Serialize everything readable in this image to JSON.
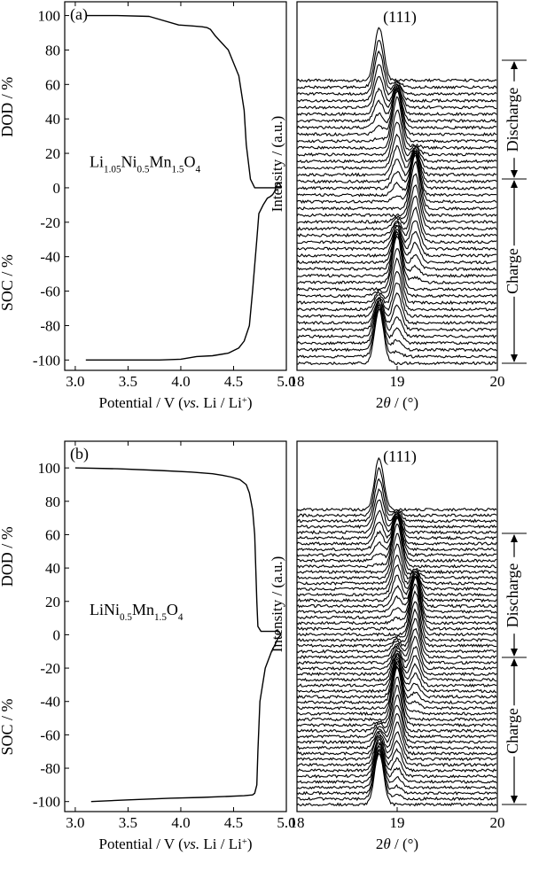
{
  "chart_data": [
    {
      "type": "line",
      "panel_label": "(a)",
      "annotation": {
        "parts": [
          {
            "t": "Li",
            "sub": false
          },
          {
            "t": "1.05",
            "sub": true
          },
          {
            "t": "Ni",
            "sub": false
          },
          {
            "t": "0.5",
            "sub": true
          },
          {
            "t": "Mn",
            "sub": false
          },
          {
            "t": "1.5",
            "sub": true
          },
          {
            "t": "O",
            "sub": false
          },
          {
            "t": "4",
            "sub": true
          }
        ]
      },
      "xlabel_parts": [
        {
          "t": "Potential / V (",
          "style": "normal"
        },
        {
          "t": "vs.",
          "style": "italic"
        },
        {
          "t": " Li / Li",
          "style": "normal"
        },
        {
          "t": "+",
          "style": "sup"
        },
        {
          "t": ")",
          "style": "normal"
        }
      ],
      "ylabel_top": "DOD / %",
      "ylabel_bottom": "SOC / %",
      "xlim": [
        2.9,
        5.0
      ],
      "ylim": [
        -106,
        108
      ],
      "xticks": [
        "3.0",
        "3.5",
        "4.0",
        "4.5",
        "5.0"
      ],
      "yticks": [
        "100",
        "80",
        "60",
        "40",
        "20",
        "0",
        "-20",
        "-40",
        "-60",
        "-80",
        "-100"
      ],
      "series": [
        {
          "x": [
            3.1,
            3.5,
            3.8,
            4.0,
            4.15,
            4.3,
            4.45,
            4.55,
            4.6,
            4.65,
            4.68,
            4.72,
            4.74,
            4.78,
            4.8,
            4.82,
            4.85,
            4.87,
            4.88,
            4.89,
            4.9,
            4.92,
            4.94,
            4.95,
            4.91,
            4.87,
            4.85,
            4.7,
            4.66,
            4.62,
            4.6,
            4.55,
            4.45,
            4.33,
            4.28,
            4.25,
            4.2,
            4.1,
            3.98,
            3.7,
            3.4,
            3.1
          ],
          "y": [
            -100,
            -100,
            -100,
            -99.5,
            -98,
            -97.5,
            -96,
            -93,
            -89,
            -80,
            -60,
            -30,
            -15,
            -10,
            -8,
            -6,
            -5,
            -4,
            -3,
            -2,
            0,
            3,
            2,
            0,
            0,
            0,
            0,
            0,
            5,
            25,
            45,
            65,
            80,
            88,
            92,
            93,
            93.5,
            94,
            94.5,
            99.5,
            100,
            100
          ]
        }
      ]
    },
    {
      "type": "line",
      "subtype": "stacked_xrd",
      "peak_label": "(111)",
      "ylabel": "Intensity / (a.u.)",
      "xlabel_parts": [
        {
          "t": "2",
          "style": "normal"
        },
        {
          "t": "θ",
          "style": "italic"
        },
        {
          "t": " / (°)",
          "style": "normal"
        }
      ],
      "xlim": [
        18,
        20
      ],
      "xticks": [
        "18",
        "19",
        "20"
      ],
      "annotations": [
        "Charge",
        "Discharge"
      ],
      "series_summary": {
        "charge_count": 23,
        "discharge_count": 20,
        "charge_peak_2theta": [
          18.82,
          19.02
        ],
        "discharge_peak_2theta": [
          19.18,
          18.8
        ],
        "phases": [
          18.82,
          19.0,
          19.18
        ]
      }
    },
    {
      "type": "line",
      "panel_label": "(b)",
      "annotation": {
        "parts": [
          {
            "t": "LiNi",
            "sub": false
          },
          {
            "t": "0.5",
            "sub": true
          },
          {
            "t": "Mn",
            "sub": false
          },
          {
            "t": "1.5",
            "sub": true
          },
          {
            "t": "O",
            "sub": false
          },
          {
            "t": "4",
            "sub": true
          }
        ]
      },
      "xlabel_parts": [
        {
          "t": "Potential / V (",
          "style": "normal"
        },
        {
          "t": "vs.",
          "style": "italic"
        },
        {
          "t": " Li / Li",
          "style": "normal"
        },
        {
          "t": "+",
          "style": "sup"
        },
        {
          "t": ")",
          "style": "normal"
        }
      ],
      "ylabel_top": "DOD / %",
      "ylabel_bottom": "SOC / %",
      "xlim": [
        2.9,
        5.0
      ],
      "ylim": [
        -106,
        116
      ],
      "xticks": [
        "3.0",
        "3.5",
        "4.0",
        "4.5",
        "5.0"
      ],
      "yticks": [
        "100",
        "80",
        "60",
        "40",
        "20",
        "0",
        "-20",
        "-40",
        "-60",
        "-80",
        "-100"
      ],
      "series": [
        {
          "x": [
            3.15,
            3.5,
            3.9,
            4.2,
            4.4,
            4.6,
            4.68,
            4.7,
            4.72,
            4.73,
            4.75,
            4.8,
            4.86,
            4.9,
            4.92,
            4.95,
            4.93,
            4.88,
            4.82,
            4.76,
            4.73,
            4.72,
            4.71,
            4.7,
            4.68,
            4.65,
            4.62,
            4.56,
            4.48,
            4.4,
            4.3,
            4.1,
            3.8,
            3.4,
            3.0
          ],
          "y": [
            -100,
            -99,
            -98,
            -97.5,
            -97,
            -96.5,
            -96,
            -95,
            -90,
            -70,
            -40,
            -20,
            -10,
            -5,
            -2,
            0,
            2,
            2,
            2,
            2,
            5,
            20,
            40,
            60,
            75,
            85,
            90,
            93,
            94.5,
            95.5,
            96.5,
            97.5,
            98.5,
            99.5,
            100
          ]
        }
      ]
    },
    {
      "type": "line",
      "subtype": "stacked_xrd",
      "peak_label": "(111)",
      "ylabel": "Intensity / (a.u.)",
      "xlabel_parts": [
        {
          "t": "2",
          "style": "normal"
        },
        {
          "t": "θ",
          "style": "italic"
        },
        {
          "t": " / (°)",
          "style": "normal"
        }
      ],
      "xlim": [
        18,
        20
      ],
      "xticks": [
        "18",
        "19",
        "20"
      ],
      "annotations": [
        "Charge",
        "Discharge"
      ],
      "series_summary": {
        "charge_count": 31,
        "discharge_count": 22,
        "phases": [
          18.82,
          19.0,
          19.18
        ]
      }
    }
  ]
}
